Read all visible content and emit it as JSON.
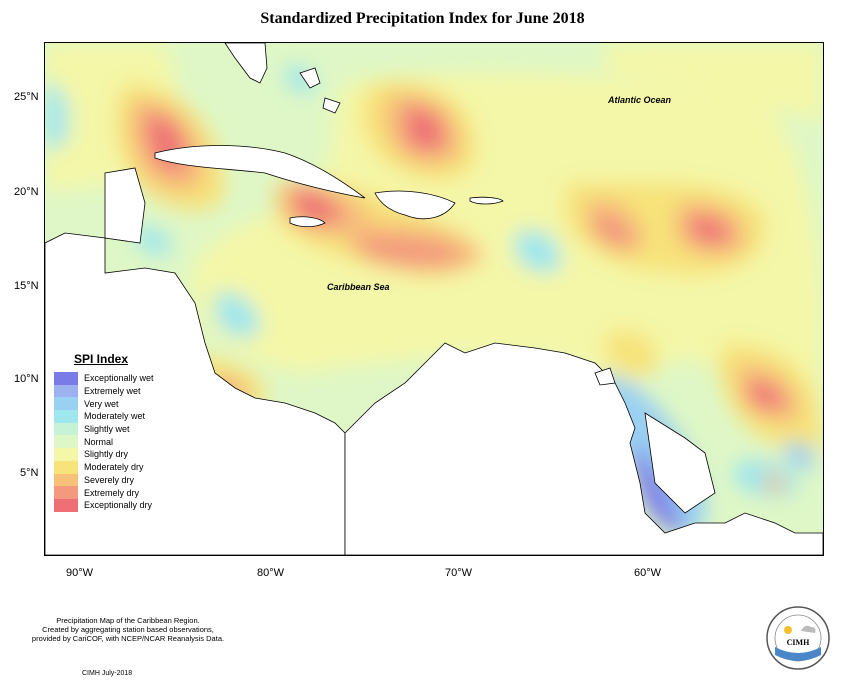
{
  "title": "Standardized Precipitation Index for June 2018",
  "y_ticks": [
    "25°N",
    "20°N",
    "15°N",
    "10°N",
    "5°N"
  ],
  "x_ticks": [
    "90°W",
    "80°W",
    "70°W",
    "60°W"
  ],
  "map_labels": {
    "ocean": "Atlantic Ocean",
    "sea": "Caribbean Sea"
  },
  "legend": {
    "title": "SPI Index",
    "items": [
      {
        "label": "Exceptionally wet",
        "color": "#7b7be8"
      },
      {
        "label": "Extremely wet",
        "color": "#9db0f0"
      },
      {
        "label": "Very wet",
        "color": "#9ad0f2"
      },
      {
        "label": "Moderately wet",
        "color": "#9fe6ee"
      },
      {
        "label": "Slightly wet",
        "color": "#c6f2d8"
      },
      {
        "label": "Normal",
        "color": "#dff7c6"
      },
      {
        "label": "Slightly dry",
        "color": "#f4f7a8"
      },
      {
        "label": "Moderately dry",
        "color": "#f7e37a"
      },
      {
        "label": "Severely dry",
        "color": "#f7c17a"
      },
      {
        "label": "Extremely dry",
        "color": "#f39a7e"
      },
      {
        "label": "Exceptionally dry",
        "color": "#ee6f75"
      }
    ]
  },
  "note": {
    "line1": "Precipitation Map of the Caribbean Region.",
    "line2": "Created by aggregating station based observations,",
    "line3": "provided by CariCOF, with NCEP/NCAR Reanalysis Data."
  },
  "credit": "CIMH July-2018",
  "logo": {
    "text": "CIMH"
  }
}
